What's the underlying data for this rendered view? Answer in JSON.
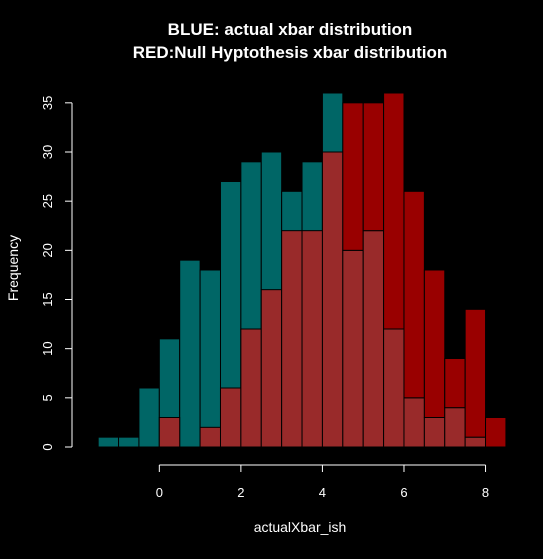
{
  "chart_data": {
    "type": "bar",
    "title_lines": [
      "BLUE: actual xbar distribution",
      "RED:Null Hyptothesis xbar distribution"
    ],
    "xlabel": "actualXbar_ish",
    "ylabel": "Frequency",
    "xlim": [
      -1.7,
      8.6
    ],
    "ylim": [
      0,
      36
    ],
    "x_ticks": [
      0,
      2,
      4,
      6,
      8
    ],
    "y_ticks": [
      0,
      5,
      10,
      15,
      20,
      25,
      30,
      35
    ],
    "series": [
      {
        "color": "#006666",
        "bins": [
          {
            "x0": -1.5,
            "x1": -1.0,
            "count": 1
          },
          {
            "x0": -1.0,
            "x1": -0.5,
            "count": 1
          },
          {
            "x0": -0.5,
            "x1": 0.0,
            "count": 6
          },
          {
            "x0": 0.0,
            "x1": 0.5,
            "count": 11
          },
          {
            "x0": 0.5,
            "x1": 1.0,
            "count": 19
          },
          {
            "x0": 1.0,
            "x1": 1.5,
            "count": 18
          },
          {
            "x0": 1.5,
            "x1": 2.0,
            "count": 27
          },
          {
            "x0": 2.0,
            "x1": 2.5,
            "count": 29
          },
          {
            "x0": 2.5,
            "x1": 3.0,
            "count": 30
          },
          {
            "x0": 3.0,
            "x1": 3.5,
            "count": 26
          },
          {
            "x0": 3.5,
            "x1": 4.0,
            "count": 29
          },
          {
            "x0": 4.0,
            "x1": 4.5,
            "count": 36
          },
          {
            "x0": 4.5,
            "x1": 5.0,
            "count": 20
          },
          {
            "x0": 5.0,
            "x1": 5.5,
            "count": 22
          },
          {
            "x0": 5.5,
            "x1": 6.0,
            "count": 12
          },
          {
            "x0": 6.0,
            "x1": 6.5,
            "count": 5
          },
          {
            "x0": 6.5,
            "x1": 7.0,
            "count": 3
          },
          {
            "x0": 7.0,
            "x1": 7.5,
            "count": 4
          },
          {
            "x0": 7.5,
            "x1": 8.0,
            "count": 1
          }
        ]
      },
      {
        "color": "#990000",
        "bins": [
          {
            "x0": 0.0,
            "x1": 0.5,
            "count": 3
          },
          {
            "x0": 0.5,
            "x1": 1.0,
            "count": 0
          },
          {
            "x0": 1.0,
            "x1": 1.5,
            "count": 2
          },
          {
            "x0": 1.5,
            "x1": 2.0,
            "count": 6
          },
          {
            "x0": 2.0,
            "x1": 2.5,
            "count": 12
          },
          {
            "x0": 2.5,
            "x1": 3.0,
            "count": 16
          },
          {
            "x0": 3.0,
            "x1": 3.5,
            "count": 22
          },
          {
            "x0": 3.5,
            "x1": 4.0,
            "count": 22
          },
          {
            "x0": 4.0,
            "x1": 4.5,
            "count": 30
          },
          {
            "x0": 4.5,
            "x1": 5.0,
            "count": 35
          },
          {
            "x0": 5.0,
            "x1": 5.5,
            "count": 35
          },
          {
            "x0": 5.5,
            "x1": 6.0,
            "count": 36
          },
          {
            "x0": 6.0,
            "x1": 6.5,
            "count": 26
          },
          {
            "x0": 6.5,
            "x1": 7.0,
            "count": 18
          },
          {
            "x0": 7.0,
            "x1": 7.5,
            "count": 9
          },
          {
            "x0": 7.5,
            "x1": 8.0,
            "count": 14
          },
          {
            "x0": 8.0,
            "x1": 8.5,
            "count": 3
          }
        ]
      }
    ],
    "overlap_color": "#992a2a",
    "bar_border": "#000000",
    "grid": false,
    "legend": "none"
  }
}
